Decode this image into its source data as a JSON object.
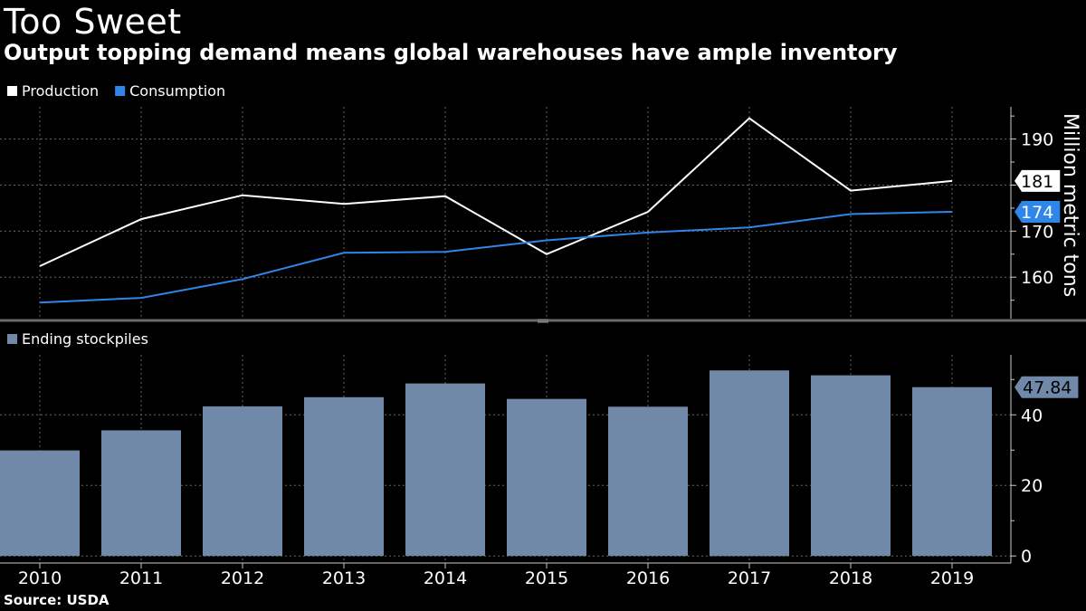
{
  "title": "Too Sweet",
  "subtitle": "Output topping demand means global warehouses have ample inventory",
  "source": "Source: USDA",
  "chart_data": [
    {
      "type": "line",
      "x": [
        "2010",
        "2011",
        "2012",
        "2013",
        "2014",
        "2015",
        "2016",
        "2017",
        "2018",
        "2019"
      ],
      "series": [
        {
          "name": "Production",
          "color": "#ffffff",
          "values": [
            162.4,
            172.6,
            177.8,
            175.9,
            177.6,
            165.0,
            174.2,
            194.5,
            178.8,
            180.9
          ]
        },
        {
          "name": "Consumption",
          "color": "#2e86e8",
          "values": [
            154.5,
            155.5,
            159.6,
            165.3,
            165.5,
            168.0,
            169.7,
            170.8,
            173.7,
            174.2
          ]
        }
      ],
      "ylabel": "Million metric tons",
      "yticks": [
        "160",
        "170",
        "180",
        "190"
      ],
      "ylim": [
        151,
        197
      ],
      "last_value_labels": [
        "181",
        "174"
      ],
      "legend_position": "top-left",
      "grid": true
    },
    {
      "type": "bar",
      "categories": [
        "2010",
        "2011",
        "2012",
        "2013",
        "2014",
        "2015",
        "2016",
        "2017",
        "2018",
        "2019"
      ],
      "series": [
        {
          "name": "Ending stockpiles",
          "color": "#7189a9",
          "values": [
            29.9,
            35.6,
            42.4,
            45.0,
            48.9,
            44.5,
            42.3,
            52.6,
            51.2,
            47.84
          ]
        }
      ],
      "yticks": [
        "0",
        "20",
        "40"
      ],
      "ylim": [
        -2,
        57
      ],
      "last_value_label": "47.84",
      "legend_position": "top-left",
      "grid": true
    }
  ]
}
